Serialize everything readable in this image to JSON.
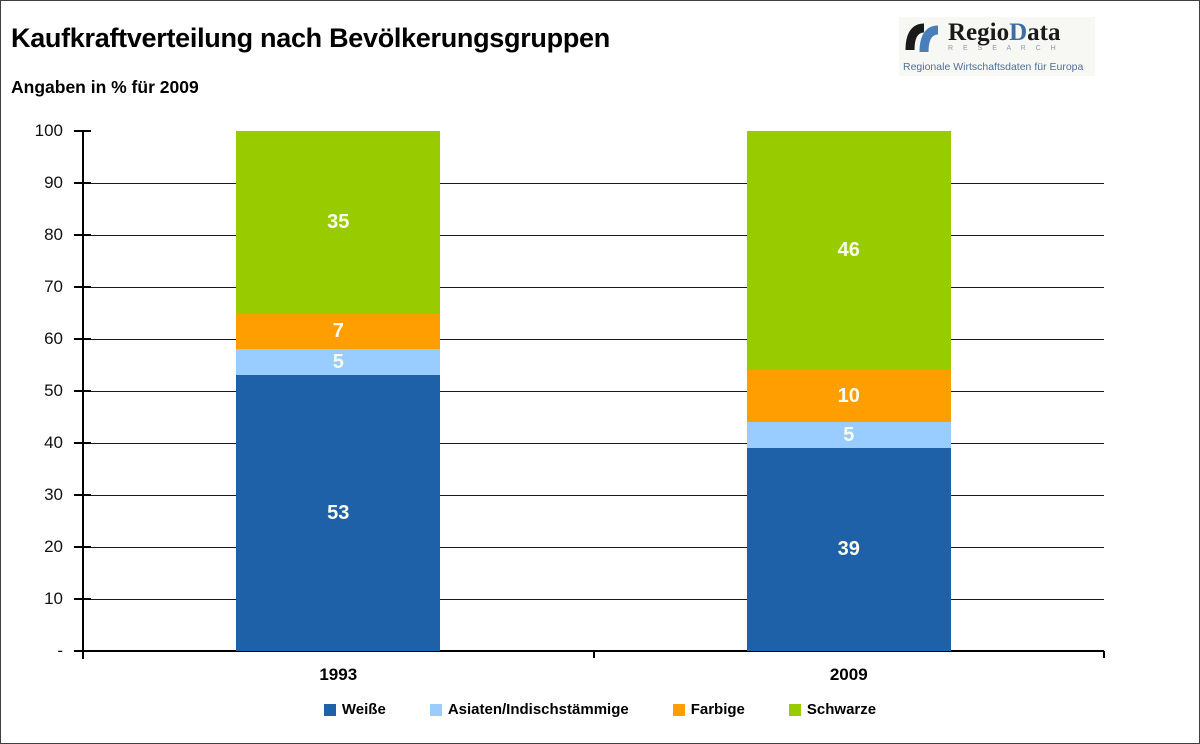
{
  "header": {
    "title": "Kaufkraftverteilung nach Bevölkerungsgruppen",
    "subtitle": "Angaben in % für 2009"
  },
  "logo": {
    "brand_prefix": "Regio",
    "brand_accent": "D",
    "brand_suffix": "ata",
    "brand_sub": "R E S E A R C H",
    "tagline": "Regionale Wirtschaftsdaten für Europa",
    "icon": "regiodata-swoosh-icon",
    "colors": {
      "mark_black": "#1a1a1a",
      "mark_blue": "#4a7ebb",
      "accent": "#3c6ea5"
    }
  },
  "chart_data": {
    "type": "bar",
    "stacked": true,
    "title": "Kaufkraftverteilung nach Bevölkerungsgruppen",
    "subtitle": "Angaben in % für 2009",
    "categories": [
      "1993",
      "2009"
    ],
    "series": [
      {
        "name": "Weiße",
        "color": "#1F61A9",
        "values": [
          53,
          39
        ]
      },
      {
        "name": "Asiaten/Indischstämmige",
        "color": "#99CCFF",
        "values": [
          5,
          5
        ]
      },
      {
        "name": "Farbige",
        "color": "#FF9E00",
        "values": [
          7,
          10
        ]
      },
      {
        "name": "Schwarze",
        "color": "#99CC00",
        "values": [
          35,
          46
        ]
      }
    ],
    "ylim": [
      0,
      100
    ],
    "ytick_interval": 10,
    "ytick_labels": [
      "-",
      "10",
      "20",
      "30",
      "40",
      "50",
      "60",
      "70",
      "80",
      "90",
      "100"
    ],
    "grid": true,
    "legend_position": "bottom",
    "value_label_color": "#FBFBEC",
    "axis_color": "#000000",
    "gridline_color": "#1a1a1a"
  }
}
